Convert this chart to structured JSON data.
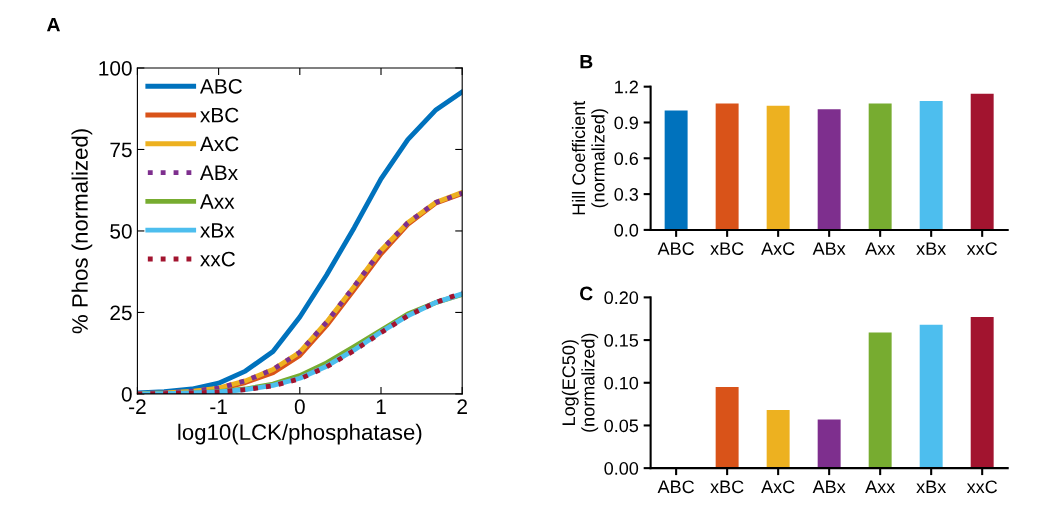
{
  "chart_data": [
    {
      "type": "line",
      "title": "A",
      "xlabel": "log10(LCK/phosphatase)",
      "ylabel": "% Phos (normalized)",
      "x": [
        -2,
        -1.67,
        -1.33,
        -1,
        -0.67,
        -0.33,
        0,
        0.33,
        0.67,
        1,
        1.33,
        1.67,
        2
      ],
      "xlim": [
        -2,
        2
      ],
      "ylim": [
        0,
        100
      ],
      "xticks": [
        {
          "value": -2,
          "label": "-2"
        },
        {
          "value": -1,
          "label": "-1"
        },
        0,
        1,
        2
      ],
      "yticks": [
        0,
        25,
        50,
        75,
        100
      ],
      "grid": false,
      "legend": "top left",
      "series": [
        {
          "name": "ABC",
          "color": "#0072bd",
          "line_style": "solid",
          "values": [
            0.3,
            0.7,
            1.5,
            3.3,
            7,
            13,
            23.6,
            36.5,
            51,
            66,
            78,
            87,
            92.7
          ]
        },
        {
          "name": "xBC",
          "color": "#d95319",
          "line_style": "solid",
          "values": [
            null,
            null,
            0.7,
            1.5,
            3.5,
            6.5,
            11.8,
            21,
            32,
            43,
            52,
            58.5,
            61.5
          ]
        },
        {
          "name": "AxC",
          "color": "#edb120",
          "line_style": "solid",
          "values": [
            0.1,
            0.3,
            0.8,
            1.8,
            4,
            7.5,
            12.8,
            22,
            33,
            44,
            52.5,
            58.7,
            61.8
          ]
        },
        {
          "name": "ABx",
          "color": "#7e2f8e",
          "line_style": "dotted",
          "values": [
            0.1,
            0.3,
            0.8,
            1.8,
            4,
            7.5,
            12.8,
            22,
            33,
            44,
            52.5,
            58.7,
            61.6
          ]
        },
        {
          "name": "Axx",
          "color": "#77ac30",
          "line_style": "solid",
          "values": [
            0,
            0.1,
            0.3,
            0.7,
            1.5,
            3,
            5.6,
            9.5,
            14.5,
            19.5,
            24.5,
            28,
            30.5
          ]
        },
        {
          "name": "xBx",
          "color": "#4dbeee",
          "line_style": "solid",
          "values": [
            0,
            0.1,
            0.3,
            0.6,
            1.3,
            2.6,
            4.8,
            8.5,
            13.5,
            19,
            24,
            28,
            30.7
          ]
        },
        {
          "name": "xxC",
          "color": "#a2142f",
          "line_style": "dotted",
          "values": [
            0,
            0.1,
            0.3,
            0.6,
            1.3,
            2.5,
            4.6,
            8.3,
            13.3,
            18.8,
            24,
            28,
            31
          ]
        }
      ]
    },
    {
      "type": "bar",
      "title": "B",
      "ylabel": "Hill Coefficient\n(normalized)",
      "categories": [
        "ABC",
        "xBC",
        "AxC",
        "ABx",
        "Axx",
        "xBx",
        "xxC"
      ],
      "values": [
        1.0,
        1.06,
        1.04,
        1.01,
        1.06,
        1.08,
        1.14
      ],
      "colors": [
        "#0072bd",
        "#d95319",
        "#edb120",
        "#7e2f8e",
        "#77ac30",
        "#4dbeee",
        "#a2142f"
      ],
      "ylim": [
        0,
        1.2
      ],
      "yticks": [
        {
          "value": 0,
          "label": "0.0"
        },
        {
          "value": 0.3,
          "label": "0.3"
        },
        {
          "value": 0.6,
          "label": "0.6"
        },
        {
          "value": 0.9,
          "label": "0.9"
        },
        {
          "value": 1.2,
          "label": "1.2"
        }
      ],
      "grid": false
    },
    {
      "type": "bar",
      "title": "C",
      "ylabel": "Log(EC50)\n(normalized)",
      "categories": [
        "ABC",
        "xBC",
        "AxC",
        "ABx",
        "Axx",
        "xBx",
        "xxC"
      ],
      "values": [
        0,
        0.095,
        0.068,
        0.057,
        0.159,
        0.168,
        0.177
      ],
      "colors": [
        "#0072bd",
        "#d95319",
        "#edb120",
        "#7e2f8e",
        "#77ac30",
        "#4dbeee",
        "#a2142f"
      ],
      "ylim": [
        0,
        0.2
      ],
      "yticks": [
        {
          "value": 0,
          "label": "0.00"
        },
        {
          "value": 0.05,
          "label": "0.05"
        },
        {
          "value": 0.1,
          "label": "0.10"
        },
        {
          "value": 0.15,
          "label": "0.15"
        },
        {
          "value": 0.2,
          "label": "0.20"
        }
      ],
      "grid": false
    }
  ]
}
